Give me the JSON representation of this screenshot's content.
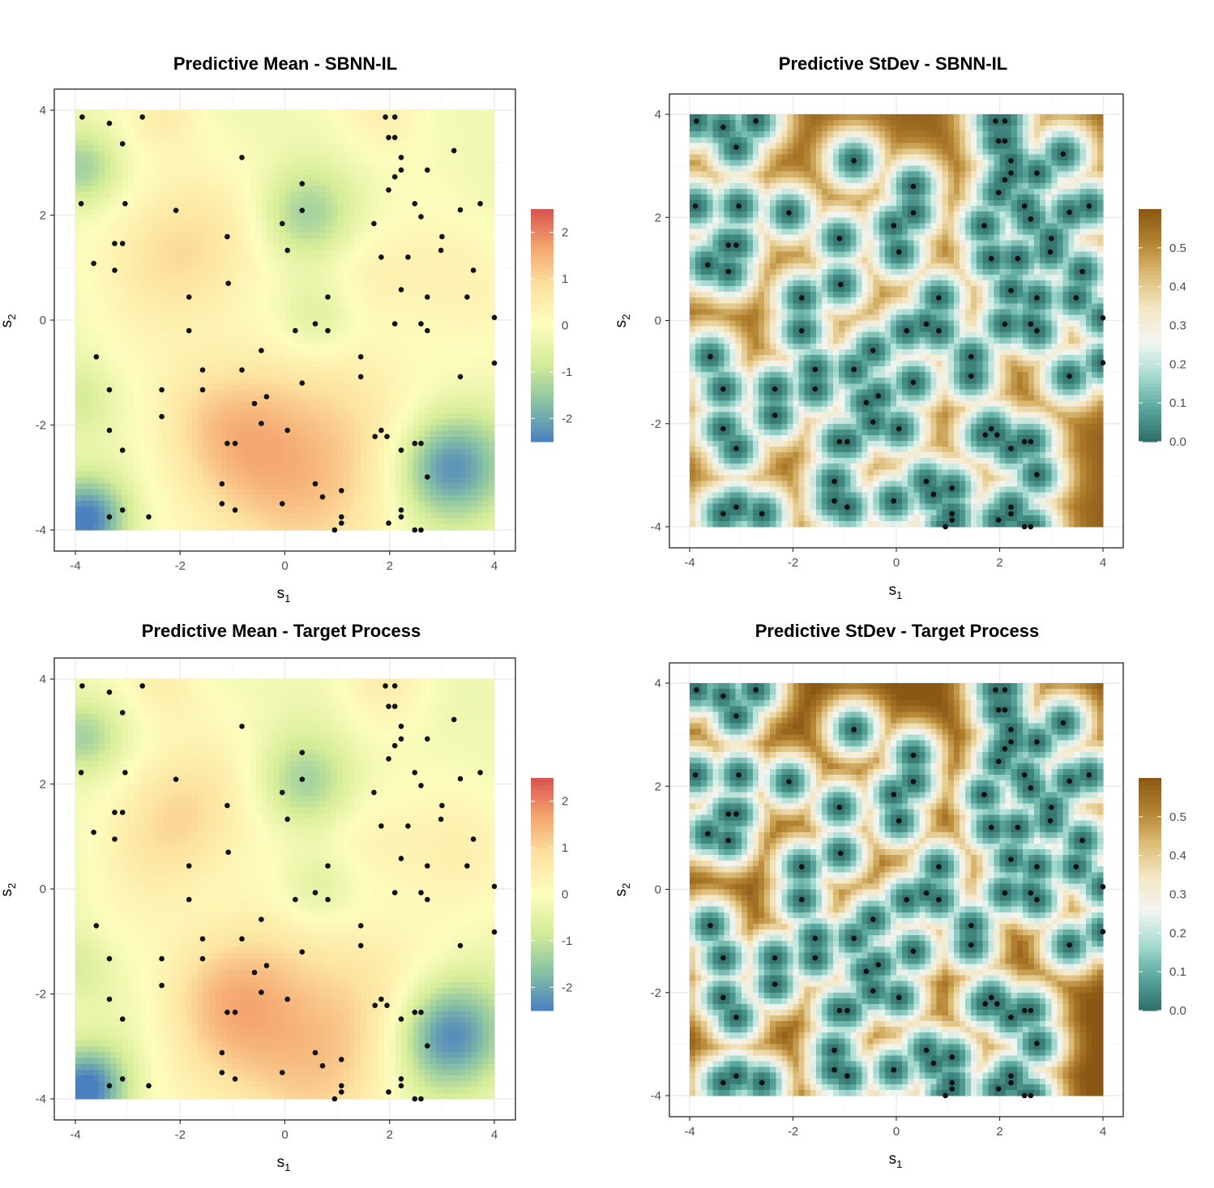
{
  "chart_data": [
    {
      "type": "heatmap",
      "title": "Predictive Mean - SBNN-IL",
      "xlabel": "s1",
      "ylabel": "s2",
      "xlim": [
        -4,
        4
      ],
      "ylim": [
        -4,
        4
      ],
      "x_ticks": [
        -4,
        -2,
        0,
        2,
        4
      ],
      "y_ticks": [
        -4,
        -2,
        0,
        2,
        4
      ],
      "x_tick_labels": [
        "-4",
        "-2",
        "0",
        "2",
        "4"
      ],
      "y_tick_labels": [
        "-4",
        "-2",
        "0",
        "2",
        "4"
      ],
      "x_label_base": "s",
      "x_label_sub": "1",
      "y_label_base": "s",
      "y_label_sub": "2",
      "colorbar": {
        "min": -2.5,
        "max": 2.5,
        "ticks": [
          2,
          1,
          0,
          -1,
          -2
        ],
        "tick_labels": [
          "2",
          "1",
          "0",
          "-1",
          "-2"
        ],
        "palette": "RdYlBu"
      },
      "surface": "mean",
      "variant": "sbnn"
    },
    {
      "type": "heatmap",
      "title": "Predictive StDev - SBNN-IL",
      "xlabel": "s1",
      "ylabel": "s2",
      "xlim": [
        -4,
        4
      ],
      "ylim": [
        -4,
        4
      ],
      "x_ticks": [
        -4,
        -2,
        0,
        2,
        4
      ],
      "y_ticks": [
        -4,
        -2,
        0,
        2,
        4
      ],
      "x_tick_labels": [
        "-4",
        "-2",
        "0",
        "2",
        "4"
      ],
      "y_tick_labels": [
        "-4",
        "-2",
        "0",
        "2",
        "4"
      ],
      "x_label_base": "s",
      "x_label_sub": "1",
      "y_label_base": "s",
      "y_label_sub": "2",
      "colorbar": {
        "min": 0.0,
        "max": 0.6,
        "ticks": [
          0.5,
          0.4,
          0.3,
          0.2,
          0.1,
          0.0
        ],
        "tick_labels": [
          "0.5",
          "0.4",
          "0.3",
          "0.2",
          "0.1",
          "0.0"
        ],
        "palette": "BrBG"
      },
      "surface": "sd",
      "variant": "sbnn"
    },
    {
      "type": "heatmap",
      "title": "Predictive Mean - Target Process",
      "xlabel": "s1",
      "ylabel": "s2",
      "xlim": [
        -4,
        4
      ],
      "ylim": [
        -4,
        4
      ],
      "x_ticks": [
        -4,
        -2,
        0,
        2,
        4
      ],
      "y_ticks": [
        -4,
        -2,
        0,
        2,
        4
      ],
      "x_tick_labels": [
        "-4",
        "-2",
        "0",
        "2",
        "4"
      ],
      "y_tick_labels": [
        "-4",
        "-2",
        "0",
        "2",
        "4"
      ],
      "x_label_base": "s",
      "x_label_sub": "1",
      "y_label_base": "s",
      "y_label_sub": "2",
      "colorbar": {
        "min": -2.5,
        "max": 2.5,
        "ticks": [
          2,
          1,
          0,
          -1,
          -2
        ],
        "tick_labels": [
          "2",
          "1",
          "0",
          "-1",
          "-2"
        ],
        "palette": "RdYlBu"
      },
      "surface": "mean",
      "variant": "target"
    },
    {
      "type": "heatmap",
      "title": "Predictive StDev - Target Process",
      "xlabel": "s1",
      "ylabel": "s2",
      "xlim": [
        -4,
        4
      ],
      "ylim": [
        -4,
        4
      ],
      "x_ticks": [
        -4,
        -2,
        0,
        2,
        4
      ],
      "y_ticks": [
        -4,
        -2,
        0,
        2,
        4
      ],
      "x_tick_labels": [
        "-4",
        "-2",
        "0",
        "2",
        "4"
      ],
      "y_tick_labels": [
        "-4",
        "-2",
        "0",
        "2",
        "4"
      ],
      "x_label_base": "s",
      "x_label_sub": "1",
      "y_label_base": "s",
      "y_label_sub": "2",
      "colorbar": {
        "min": 0.0,
        "max": 0.6,
        "ticks": [
          0.5,
          0.4,
          0.3,
          0.2,
          0.1,
          0.0
        ],
        "tick_labels": [
          "0.5",
          "0.4",
          "0.3",
          "0.2",
          "0.1",
          "0.0"
        ],
        "palette": "BrBG"
      },
      "surface": "sd",
      "variant": "target"
    }
  ],
  "observations": [
    [
      -3.87,
      3.87
    ],
    [
      -3.35,
      3.75
    ],
    [
      -2.72,
      3.87
    ],
    [
      -3.1,
      3.36
    ],
    [
      -3.89,
      2.22
    ],
    [
      -3.05,
      2.22
    ],
    [
      -2.08,
      2.09
    ],
    [
      -3.25,
      1.46
    ],
    [
      -3.1,
      1.46
    ],
    [
      -3.65,
      1.08
    ],
    [
      -3.25,
      0.95
    ],
    [
      -1.1,
      1.59
    ],
    [
      -1.08,
      0.7
    ],
    [
      -1.83,
      0.44
    ],
    [
      -1.83,
      -0.2
    ],
    [
      -3.6,
      -0.7
    ],
    [
      -3.35,
      -1.33
    ],
    [
      -2.35,
      -1.33
    ],
    [
      -2.35,
      -1.84
    ],
    [
      -1.57,
      -0.95
    ],
    [
      -1.57,
      -1.33
    ],
    [
      -3.35,
      -2.1
    ],
    [
      -3.1,
      -2.48
    ],
    [
      -1.1,
      -2.35
    ],
    [
      -0.95,
      -2.35
    ],
    [
      -1.2,
      -3.12
    ],
    [
      -1.2,
      -3.5
    ],
    [
      -0.95,
      -3.62
    ],
    [
      -3.1,
      -3.62
    ],
    [
      -3.35,
      -3.75
    ],
    [
      -2.6,
      -3.75
    ],
    [
      -0.82,
      3.1
    ],
    [
      0.33,
      2.6
    ],
    [
      0.33,
      2.09
    ],
    [
      -0.05,
      1.84
    ],
    [
      0.05,
      1.33
    ],
    [
      0.82,
      0.44
    ],
    [
      0.58,
      -0.07
    ],
    [
      0.82,
      -0.2
    ],
    [
      0.2,
      -0.2
    ],
    [
      -0.45,
      -0.58
    ],
    [
      -0.35,
      -1.46
    ],
    [
      -0.58,
      -1.59
    ],
    [
      -0.45,
      -1.97
    ],
    [
      -0.82,
      -0.95
    ],
    [
      0.33,
      -1.2
    ],
    [
      0.05,
      -2.1
    ],
    [
      -0.05,
      -3.5
    ],
    [
      0.58,
      -3.12
    ],
    [
      0.72,
      -3.37
    ],
    [
      1.08,
      -3.25
    ],
    [
      1.08,
      -3.75
    ],
    [
      1.08,
      -3.87
    ],
    [
      0.95,
      -4.0
    ],
    [
      1.92,
      3.87
    ],
    [
      2.1,
      3.87
    ],
    [
      2.1,
      3.48
    ],
    [
      1.98,
      3.48
    ],
    [
      2.22,
      3.1
    ],
    [
      2.22,
      2.86
    ],
    [
      2.1,
      2.73
    ],
    [
      2.72,
      2.86
    ],
    [
      1.98,
      2.48
    ],
    [
      2.48,
      2.22
    ],
    [
      2.6,
      1.97
    ],
    [
      1.7,
      1.84
    ],
    [
      3.23,
      3.23
    ],
    [
      3.35,
      2.1
    ],
    [
      3.73,
      2.22
    ],
    [
      3.0,
      1.59
    ],
    [
      2.98,
      1.33
    ],
    [
      1.84,
      1.2
    ],
    [
      2.35,
      1.2
    ],
    [
      2.22,
      0.58
    ],
    [
      2.72,
      0.44
    ],
    [
      3.6,
      0.95
    ],
    [
      3.48,
      0.44
    ],
    [
      4.0,
      0.05
    ],
    [
      2.1,
      -0.07
    ],
    [
      2.6,
      -0.07
    ],
    [
      2.72,
      -0.2
    ],
    [
      1.45,
      -0.7
    ],
    [
      1.45,
      -1.08
    ],
    [
      3.35,
      -1.08
    ],
    [
      4.0,
      -0.82
    ],
    [
      1.84,
      -2.1
    ],
    [
      1.72,
      -2.22
    ],
    [
      1.95,
      -2.22
    ],
    [
      2.22,
      -2.48
    ],
    [
      2.48,
      -2.35
    ],
    [
      2.6,
      -2.35
    ],
    [
      2.72,
      -2.99
    ],
    [
      2.22,
      -3.62
    ],
    [
      2.22,
      -3.75
    ],
    [
      1.98,
      -3.87
    ],
    [
      2.48,
      -4.0
    ],
    [
      2.6,
      -4.0
    ]
  ]
}
